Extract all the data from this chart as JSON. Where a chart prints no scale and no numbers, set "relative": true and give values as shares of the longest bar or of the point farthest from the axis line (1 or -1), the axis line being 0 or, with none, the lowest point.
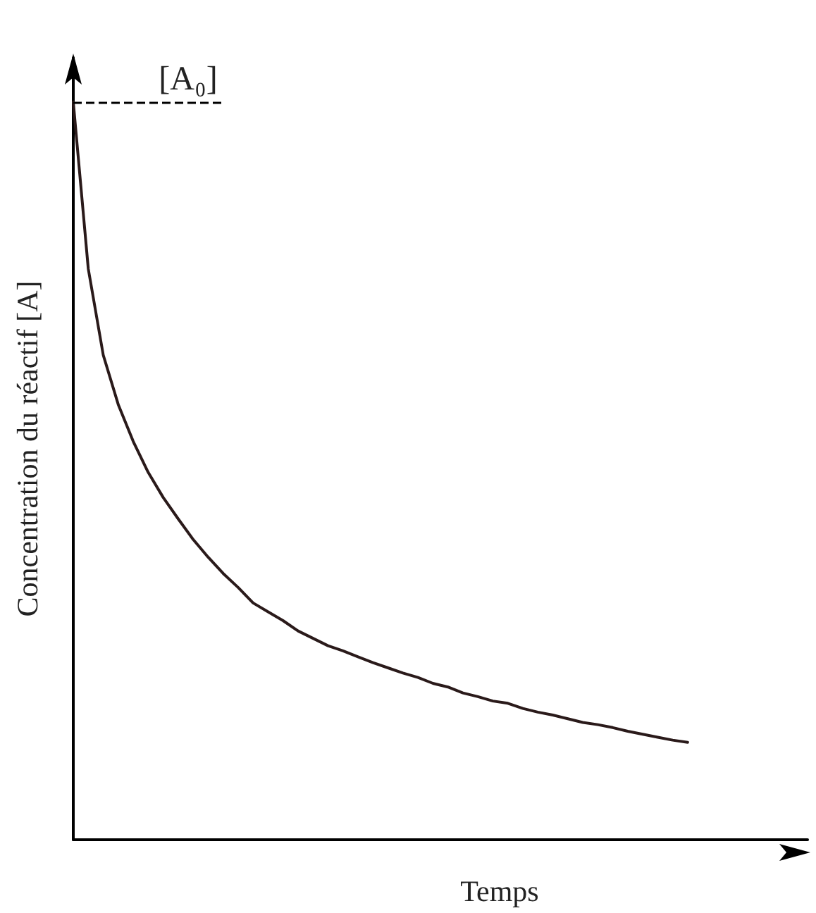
{
  "chart_data": {
    "type": "line",
    "relative": true,
    "xlabel": "Temps",
    "ylabel": "Concentration du réactif [A]",
    "categories": [
      null,
      null,
      null,
      null,
      null,
      null,
      null,
      null,
      null,
      null,
      null,
      null,
      null,
      null,
      null,
      null,
      null,
      null,
      null,
      null,
      null,
      null,
      null,
      null,
      null,
      null,
      null,
      null,
      null,
      null,
      null,
      null,
      null,
      null,
      null,
      null,
      null,
      null,
      null,
      null,
      null,
      null,
      null,
      null,
      null,
      null,
      null,
      null,
      null,
      null
    ],
    "series": [
      {
        "color": "#2a1a1a",
        "values": [
          1,
          0.774,
          0.657,
          0.59,
          0.54,
          0.498,
          0.464,
          0.435,
          0.407,
          0.383,
          0.361,
          0.342,
          0.321,
          0.309,
          0.297,
          0.283,
          0.273,
          0.263,
          0.256,
          0.248,
          0.24,
          0.233,
          0.226,
          0.22,
          0.212,
          0.207,
          0.199,
          0.194,
          0.188,
          0.185,
          0.178,
          0.173,
          0.169,
          0.164,
          0.159,
          0.156,
          0.152,
          0.147,
          0.143,
          0.139,
          0.135,
          0.132,
          null,
          null,
          null,
          null,
          null,
          null,
          null,
          null
        ]
      }
    ],
    "ref_lines": [
      {
        "axis": "y",
        "value": 1,
        "label": "[A₀]",
        "line_style": "dashed",
        "color": "#000000"
      }
    ],
    "marker": "none",
    "line_style": "solid"
  }
}
